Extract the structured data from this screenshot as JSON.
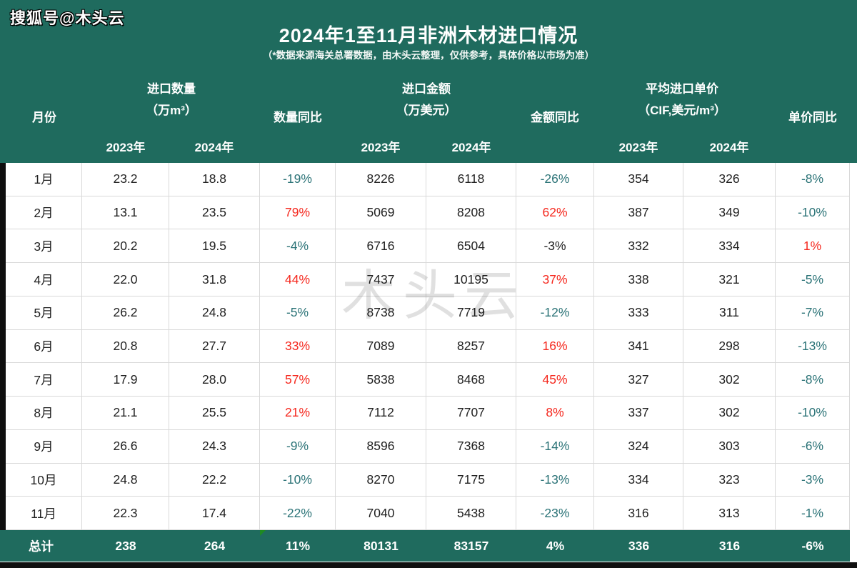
{
  "badge": "搜狐号@木头云",
  "watermark": "木头云",
  "header": {
    "title": "2024年1至11月非洲木材进口情况",
    "subtitle": "（*数据来源海关总署数据，由木头云整理，仅供参考，具体价格以市场为准）"
  },
  "columns": {
    "month": "月份",
    "qty_group": "进口数量",
    "qty_unit": "（万m³）",
    "qty_yoy": "数量同比",
    "amt_group": "进口金额",
    "amt_unit": "（万美元）",
    "amt_yoy": "金额同比",
    "price_group": "平均进口单价",
    "price_unit": "（CIF,美元/m³）",
    "price_yoy": "单价同比",
    "year_2023": "2023年",
    "year_2024": "2024年"
  },
  "rows": [
    {
      "month": "1月",
      "q2023": "23.2",
      "q2024": "18.8",
      "q_yoy": "-19%",
      "q_yoy_color": "down",
      "a2023": "8226",
      "a2024": "6118",
      "a_yoy": "-26%",
      "a_yoy_color": "down",
      "p2023": "354",
      "p2024": "326",
      "p_yoy": "-8%",
      "p_yoy_color": "down"
    },
    {
      "month": "2月",
      "q2023": "13.1",
      "q2024": "23.5",
      "q_yoy": "79%",
      "q_yoy_color": "up",
      "a2023": "5069",
      "a2024": "8208",
      "a_yoy": "62%",
      "a_yoy_color": "up",
      "p2023": "387",
      "p2024": "349",
      "p_yoy": "-10%",
      "p_yoy_color": "down"
    },
    {
      "month": "3月",
      "q2023": "20.2",
      "q2024": "19.5",
      "q_yoy": "-4%",
      "q_yoy_color": "down",
      "a2023": "6716",
      "a2024": "6504",
      "a_yoy": "-3%",
      "a_yoy_color": "plain",
      "p2023": "332",
      "p2024": "334",
      "p_yoy": "1%",
      "p_yoy_color": "up"
    },
    {
      "month": "4月",
      "q2023": "22.0",
      "q2024": "31.8",
      "q_yoy": "44%",
      "q_yoy_color": "up",
      "a2023": "7437",
      "a2024": "10195",
      "a_yoy": "37%",
      "a_yoy_color": "up",
      "p2023": "338",
      "p2024": "321",
      "p_yoy": "-5%",
      "p_yoy_color": "down"
    },
    {
      "month": "5月",
      "q2023": "26.2",
      "q2024": "24.8",
      "q_yoy": "-5%",
      "q_yoy_color": "down",
      "a2023": "8738",
      "a2024": "7719",
      "a_yoy": "-12%",
      "a_yoy_color": "down",
      "p2023": "333",
      "p2024": "311",
      "p_yoy": "-7%",
      "p_yoy_color": "down"
    },
    {
      "month": "6月",
      "q2023": "20.8",
      "q2024": "27.7",
      "q_yoy": "33%",
      "q_yoy_color": "up",
      "a2023": "7089",
      "a2024": "8257",
      "a_yoy": "16%",
      "a_yoy_color": "up",
      "p2023": "341",
      "p2024": "298",
      "p_yoy": "-13%",
      "p_yoy_color": "down"
    },
    {
      "month": "7月",
      "q2023": "17.9",
      "q2024": "28.0",
      "q_yoy": "57%",
      "q_yoy_color": "up",
      "a2023": "5838",
      "a2024": "8468",
      "a_yoy": "45%",
      "a_yoy_color": "up",
      "p2023": "327",
      "p2024": "302",
      "p_yoy": "-8%",
      "p_yoy_color": "down"
    },
    {
      "month": "8月",
      "q2023": "21.1",
      "q2024": "25.5",
      "q_yoy": "21%",
      "q_yoy_color": "up",
      "a2023": "7112",
      "a2024": "7707",
      "a_yoy": "8%",
      "a_yoy_color": "up",
      "p2023": "337",
      "p2024": "302",
      "p_yoy": "-10%",
      "p_yoy_color": "down"
    },
    {
      "month": "9月",
      "q2023": "26.6",
      "q2024": "24.3",
      "q_yoy": "-9%",
      "q_yoy_color": "down",
      "a2023": "8596",
      "a2024": "7368",
      "a_yoy": "-14%",
      "a_yoy_color": "down",
      "p2023": "324",
      "p2024": "303",
      "p_yoy": "-6%",
      "p_yoy_color": "down"
    },
    {
      "month": "10月",
      "q2023": "24.8",
      "q2024": "22.2",
      "q_yoy": "-10%",
      "q_yoy_color": "down",
      "a2023": "8270",
      "a2024": "7175",
      "a_yoy": "-13%",
      "a_yoy_color": "down",
      "p2023": "334",
      "p2024": "323",
      "p_yoy": "-3%",
      "p_yoy_color": "down"
    },
    {
      "month": "11月",
      "q2023": "22.3",
      "q2024": "17.4",
      "q_yoy": "-22%",
      "q_yoy_color": "down",
      "a2023": "7040",
      "a2024": "5438",
      "a_yoy": "-23%",
      "a_yoy_color": "down",
      "p2023": "316",
      "p2024": "313",
      "p_yoy": "-1%",
      "p_yoy_color": "down"
    }
  ],
  "total": {
    "month": "总计",
    "q2023": "238",
    "q2024": "264",
    "q_yoy": "11%",
    "a2023": "80131",
    "a2024": "83157",
    "a_yoy": "4%",
    "p2023": "336",
    "p2024": "316",
    "p_yoy": "-6%"
  },
  "colors": {
    "header_bg": "#1f6b5e",
    "yoy_up_red": "#f5281e",
    "yoy_down_teal": "#2b7377",
    "text": "#212121",
    "flag_green": "#1e8a22"
  },
  "chart_data": {
    "type": "table",
    "title": "2024年1至11月非洲木材进口情况",
    "subtitle": "（*数据来源海关总署数据，由木头云整理，仅供参考，具体价格以市场为准）",
    "columns": [
      "月份",
      "进口数量(万m³) 2023年",
      "进口数量(万m³) 2024年",
      "数量同比",
      "进口金额(万美元) 2023年",
      "进口金额(万美元) 2024年",
      "金额同比",
      "平均进口单价(CIF,美元/m³) 2023年",
      "平均进口单价(CIF,美元/m³) 2024年",
      "单价同比"
    ],
    "rows": [
      [
        "1月",
        23.2,
        18.8,
        "-19%",
        8226,
        6118,
        "-26%",
        354,
        326,
        "-8%"
      ],
      [
        "2月",
        13.1,
        23.5,
        "79%",
        5069,
        8208,
        "62%",
        387,
        349,
        "-10%"
      ],
      [
        "3月",
        20.2,
        19.5,
        "-4%",
        6716,
        6504,
        "-3%",
        332,
        334,
        "1%"
      ],
      [
        "4月",
        22.0,
        31.8,
        "44%",
        7437,
        10195,
        "37%",
        338,
        321,
        "-5%"
      ],
      [
        "5月",
        26.2,
        24.8,
        "-5%",
        8738,
        7719,
        "-12%",
        333,
        311,
        "-7%"
      ],
      [
        "6月",
        20.8,
        27.7,
        "33%",
        7089,
        8257,
        "16%",
        341,
        298,
        "-13%"
      ],
      [
        "7月",
        17.9,
        28.0,
        "57%",
        5838,
        8468,
        "45%",
        327,
        302,
        "-8%"
      ],
      [
        "8月",
        21.1,
        25.5,
        "21%",
        7112,
        7707,
        "8%",
        337,
        302,
        "-10%"
      ],
      [
        "9月",
        26.6,
        24.3,
        "-9%",
        8596,
        7368,
        "-14%",
        324,
        303,
        "-6%"
      ],
      [
        "10月",
        24.8,
        22.2,
        "-10%",
        8270,
        7175,
        "-13%",
        334,
        323,
        "-3%"
      ],
      [
        "11月",
        22.3,
        17.4,
        "-22%",
        7040,
        5438,
        "-23%",
        316,
        313,
        "-1%"
      ],
      [
        "总计",
        238,
        264,
        "11%",
        80131,
        83157,
        "4%",
        336,
        316,
        "-6%"
      ]
    ]
  }
}
